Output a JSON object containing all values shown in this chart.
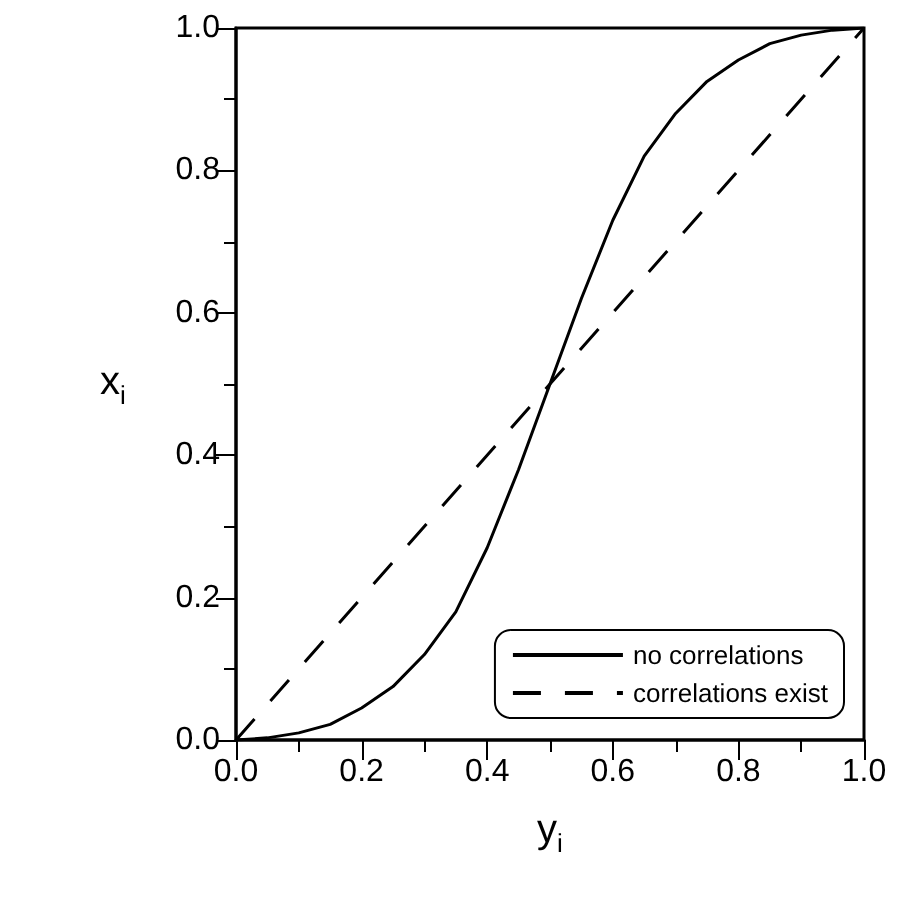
{
  "chart_data": {
    "type": "line",
    "xlabel": "y$_{i}$",
    "ylabel": "x$_{i}$",
    "xlim": [
      0,
      1
    ],
    "ylim": [
      0,
      1
    ],
    "xticks": [
      {
        "value": 0,
        "label": "0.0"
      },
      0.2,
      0.4,
      0.6,
      0.8,
      {
        "value": 1,
        "label": "1.0"
      }
    ],
    "yticks": [
      {
        "value": 0,
        "label": "0.0"
      },
      0.2,
      0.4,
      0.6,
      0.8,
      {
        "value": 1,
        "label": "1.0"
      }
    ],
    "grid": false,
    "legend": "bottom right",
    "marker": "none",
    "series": [
      {
        "name": "no correlations",
        "color": "#000000",
        "line_style": "solid",
        "x": [
          0,
          0.05,
          0.1,
          0.15,
          0.2,
          0.25,
          0.3,
          0.35,
          0.4,
          0.45,
          0.5,
          0.55,
          0.6,
          0.65,
          0.7,
          0.75,
          0.8,
          0.85,
          0.9,
          0.95,
          1.0
        ],
        "values": [
          0,
          0.003,
          0.01,
          0.022,
          0.045,
          0.075,
          0.12,
          0.18,
          0.27,
          0.38,
          0.5,
          0.62,
          0.73,
          0.82,
          0.88,
          0.925,
          0.955,
          0.978,
          0.99,
          0.997,
          1.0
        ]
      },
      {
        "name": "correlations exist",
        "color": "#000000",
        "line_style": "dashed",
        "x": [
          0,
          1
        ],
        "values": [
          0,
          1
        ]
      }
    ]
  }
}
